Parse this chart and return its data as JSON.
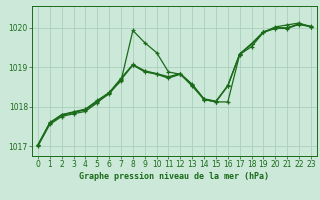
{
  "background_color": "#cce8d8",
  "grid_color": "#aacfbc",
  "line_color": "#1a6b1a",
  "title": "Graphe pression niveau de la mer (hPa)",
  "xlim": [
    -0.5,
    23.5
  ],
  "ylim": [
    1016.75,
    1020.55
  ],
  "yticks": [
    1017,
    1018,
    1019,
    1020
  ],
  "xticks": [
    0,
    1,
    2,
    3,
    4,
    5,
    6,
    7,
    8,
    9,
    10,
    11,
    12,
    13,
    14,
    15,
    16,
    17,
    18,
    19,
    20,
    21,
    22,
    23
  ],
  "series": [
    [
      1017.0,
      1017.55,
      1017.75,
      1017.82,
      1017.88,
      1018.1,
      1018.35,
      1018.65,
      1019.93,
      1019.62,
      1019.37,
      1018.88,
      1018.82,
      1018.52,
      1018.18,
      1018.12,
      1018.12,
      1019.32,
      1019.52,
      1019.88,
      1020.02,
      1020.07,
      1020.12,
      1020.02
    ],
    [
      1017.02,
      1017.58,
      1017.78,
      1017.85,
      1017.92,
      1018.12,
      1018.32,
      1018.68,
      1019.05,
      1018.88,
      1018.82,
      1018.72,
      1018.82,
      1018.55,
      1018.18,
      1018.12,
      1018.52,
      1019.32,
      1019.58,
      1019.88,
      1019.98,
      1019.98,
      1020.08,
      1020.02
    ],
    [
      1017.03,
      1017.59,
      1017.79,
      1017.86,
      1017.93,
      1018.14,
      1018.34,
      1018.7,
      1019.06,
      1018.9,
      1018.83,
      1018.74,
      1018.83,
      1018.56,
      1018.19,
      1018.13,
      1018.53,
      1019.33,
      1019.59,
      1019.89,
      1019.99,
      1019.99,
      1020.09,
      1020.03
    ],
    [
      1017.04,
      1017.6,
      1017.8,
      1017.87,
      1017.94,
      1018.16,
      1018.36,
      1018.72,
      1019.07,
      1018.91,
      1018.84,
      1018.76,
      1018.84,
      1018.57,
      1018.2,
      1018.14,
      1018.54,
      1019.34,
      1019.6,
      1019.9,
      1020.0,
      1020.0,
      1020.1,
      1020.04
    ]
  ]
}
